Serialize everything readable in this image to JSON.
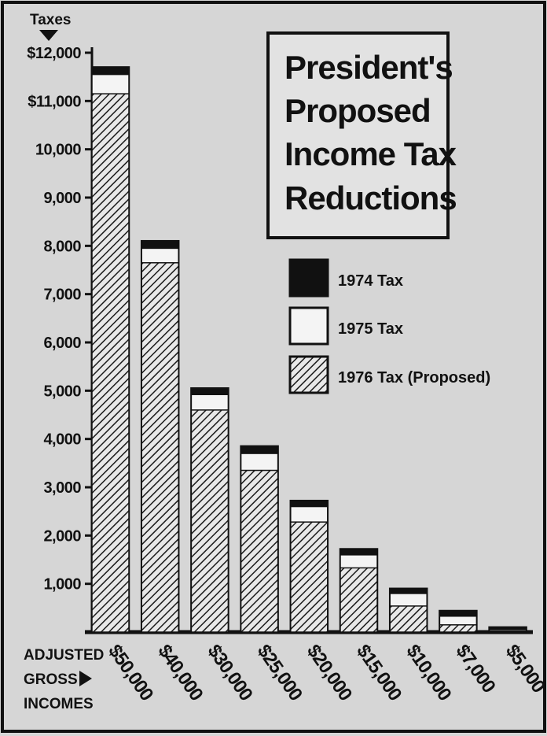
{
  "chart_data": {
    "type": "bar",
    "title_lines": [
      "President's",
      "Proposed",
      "Income Tax",
      "Reductions"
    ],
    "ylabel": "Taxes",
    "xlabel_lines": [
      "ADJUSTED",
      "GROSS",
      "INCOMES"
    ],
    "ylim": [
      0,
      12000
    ],
    "y_ticks": [
      1000,
      2000,
      3000,
      4000,
      5000,
      6000,
      7000,
      8000,
      9000,
      10000,
      11000,
      12000
    ],
    "y_tick_labels": [
      "1,000",
      "2,000",
      "3,000",
      "4,000",
      "5,000",
      "6,000",
      "7,000",
      "8,000",
      "9,000",
      "10,000",
      "$11,000",
      "$12,000"
    ],
    "categories": [
      "$50,000",
      "$40,000",
      "$30,000",
      "$25,000",
      "$20,000",
      "$15,000",
      "$10,000",
      "$7,000",
      "$5,000"
    ],
    "series": [
      {
        "name": "1974 Tax",
        "values": [
          11700,
          8100,
          5050,
          3850,
          2720,
          1720,
          900,
          440,
          100
        ]
      },
      {
        "name": "1975 Tax",
        "values": [
          11550,
          7950,
          4920,
          3700,
          2600,
          1600,
          800,
          330,
          50
        ]
      },
      {
        "name": "1976 Tax (Proposed)",
        "values": [
          11150,
          7650,
          4600,
          3350,
          2280,
          1330,
          540,
          150,
          20
        ]
      }
    ],
    "legend_labels": [
      "1974 Tax",
      "1975 Tax",
      "1976 Tax (Proposed)"
    ],
    "legend_placement": "upper-right, below title box",
    "grid": false,
    "colors": {
      "tax_1974": "#111111",
      "tax_1975": "#f4f4f4",
      "tax_1976_hatch": "#222222",
      "background": "#d6d6d6"
    }
  }
}
